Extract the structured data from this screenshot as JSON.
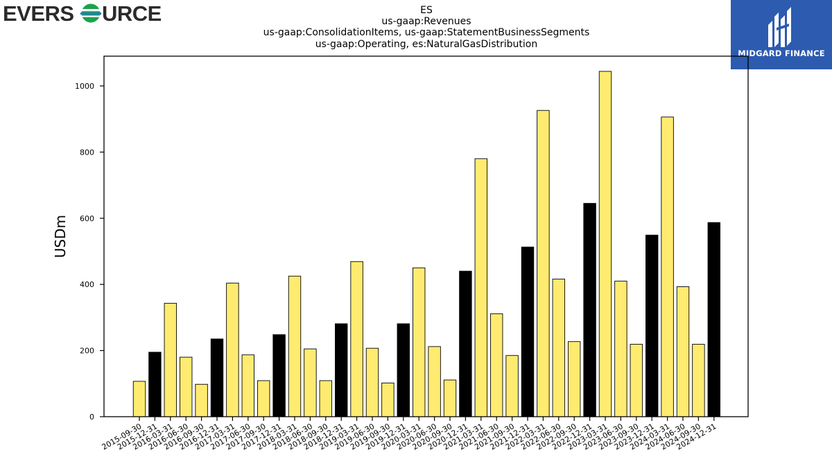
{
  "logo_left": {
    "text": "EVERSOURCE",
    "colors": {
      "text": "#2b2b2b",
      "green": "#1aa34a",
      "blue": "#2a78c1"
    }
  },
  "logo_right": {
    "text": "MIDGARD FINANCE",
    "background": "#2c5bb0"
  },
  "chart_data": {
    "type": "bar",
    "title_lines": [
      "ES",
      "us-gaap:Revenues",
      "us-gaap:ConsolidationItems, us-gaap:StatementBusinessSegments",
      "us-gaap:Operating, es:NaturalGasDistribution"
    ],
    "xlabel": "",
    "ylabel": "USDm",
    "ylim": [
      0,
      1090
    ],
    "yticks": [
      0,
      200,
      400,
      600,
      800,
      1000
    ],
    "grid": false,
    "colors": {
      "quarter": "#ffeb70",
      "year_end": "#000000",
      "edge": "#000000"
    },
    "categories": [
      "2015-09-30",
      "2015-12-31",
      "2016-03-31",
      "2016-06-30",
      "2016-09-30",
      "2016-12-31",
      "2017-03-31",
      "2017-06-30",
      "2017-09-30",
      "2017-12-31",
      "2018-03-31",
      "2018-06-30",
      "2018-09-30",
      "2018-12-31",
      "2019-03-31",
      "2019-06-30",
      "2019-09-30",
      "2019-12-31",
      "2020-03-31",
      "2020-06-30",
      "2020-09-30",
      "2020-12-31",
      "2021-03-31",
      "2021-06-30",
      "2021-09-30",
      "2021-12-31",
      "2022-03-31",
      "2022-06-30",
      "2022-09-30",
      "2022-12-31",
      "2023-03-31",
      "2023-06-30",
      "2023-09-30",
      "2023-12-31",
      "2024-03-31",
      "2024-06-30",
      "2024-09-30",
      "2024-12-31"
    ],
    "values": [
      107,
      195,
      343,
      180,
      98,
      235,
      404,
      187,
      109,
      248,
      425,
      205,
      109,
      281,
      469,
      207,
      102,
      281,
      450,
      212,
      111,
      440,
      780,
      311,
      185,
      513,
      926,
      416,
      227,
      645,
      1044,
      410,
      219,
      549,
      906,
      393,
      219,
      587
    ]
  }
}
